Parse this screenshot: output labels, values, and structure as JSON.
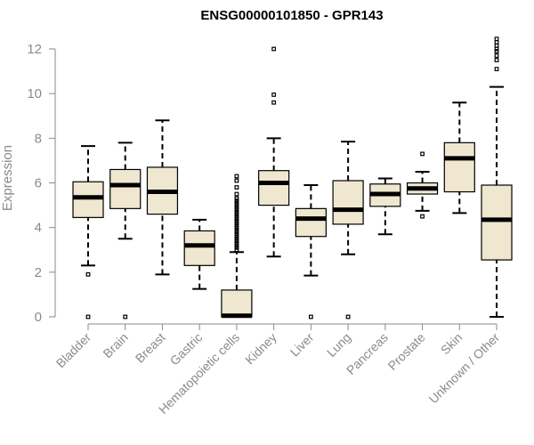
{
  "chart_data": {
    "type": "boxplot",
    "title": "ENSG00000101850 - GPR143",
    "xlabel": "",
    "ylabel": "Expression",
    "ylim": [
      0,
      12.5
    ],
    "yticks": [
      "0",
      "2",
      "4",
      "6",
      "8",
      "10",
      "12"
    ],
    "box_fill": "#efe7cf",
    "categories": [
      "Bladder",
      "Brain",
      "Breast",
      "Gastric",
      "Hematopoietic cells",
      "Kidney",
      "Liver",
      "Lung",
      "Pancreas",
      "Prostate",
      "Skin",
      "Unknown / Other"
    ],
    "boxes": [
      {
        "min": 2.3,
        "q1": 4.45,
        "median": 5.35,
        "q3": 6.05,
        "max": 7.65,
        "outliers": [
          1.9,
          0.0
        ]
      },
      {
        "min": 3.5,
        "q1": 4.85,
        "median": 5.9,
        "q3": 6.6,
        "max": 7.8,
        "outliers": [
          0.0
        ]
      },
      {
        "min": 1.9,
        "q1": 4.6,
        "median": 5.6,
        "q3": 6.7,
        "max": 8.8,
        "outliers": []
      },
      {
        "min": 1.25,
        "q1": 2.3,
        "median": 3.2,
        "q3": 3.85,
        "max": 4.35,
        "outliers": []
      },
      {
        "min": 0.0,
        "q1": 0.0,
        "median": 0.05,
        "q3": 1.2,
        "max": 2.9,
        "outliers": [
          3.0,
          3.1,
          3.2,
          3.3,
          3.4,
          3.5,
          3.6,
          3.7,
          3.8,
          3.9,
          4.0,
          4.1,
          4.2,
          4.3,
          4.4,
          4.5,
          4.6,
          4.7,
          4.8,
          4.9,
          5.0,
          5.1,
          5.2,
          5.3,
          5.5,
          5.8,
          6.1,
          6.3
        ]
      },
      {
        "min": 2.7,
        "q1": 5.0,
        "median": 6.0,
        "q3": 6.55,
        "max": 8.0,
        "outliers": [
          9.6,
          9.95,
          12.0
        ]
      },
      {
        "min": 1.85,
        "q1": 3.6,
        "median": 4.4,
        "q3": 4.85,
        "max": 5.9,
        "outliers": [
          0.0
        ]
      },
      {
        "min": 2.8,
        "q1": 4.15,
        "median": 4.8,
        "q3": 6.1,
        "max": 7.85,
        "outliers": [
          0.0
        ]
      },
      {
        "min": 3.7,
        "q1": 4.95,
        "median": 5.5,
        "q3": 5.95,
        "max": 6.2,
        "outliers": []
      },
      {
        "min": 4.75,
        "q1": 5.5,
        "median": 5.75,
        "q3": 6.0,
        "max": 6.5,
        "outliers": [
          4.5,
          7.3
        ]
      },
      {
        "min": 4.65,
        "q1": 5.6,
        "median": 7.1,
        "q3": 7.8,
        "max": 9.6,
        "outliers": []
      },
      {
        "min": 0.0,
        "q1": 2.55,
        "median": 4.35,
        "q3": 5.9,
        "max": 10.3,
        "outliers": [
          11.1,
          11.5,
          11.7,
          11.9,
          12.0,
          12.15,
          12.3,
          12.45
        ]
      }
    ]
  }
}
